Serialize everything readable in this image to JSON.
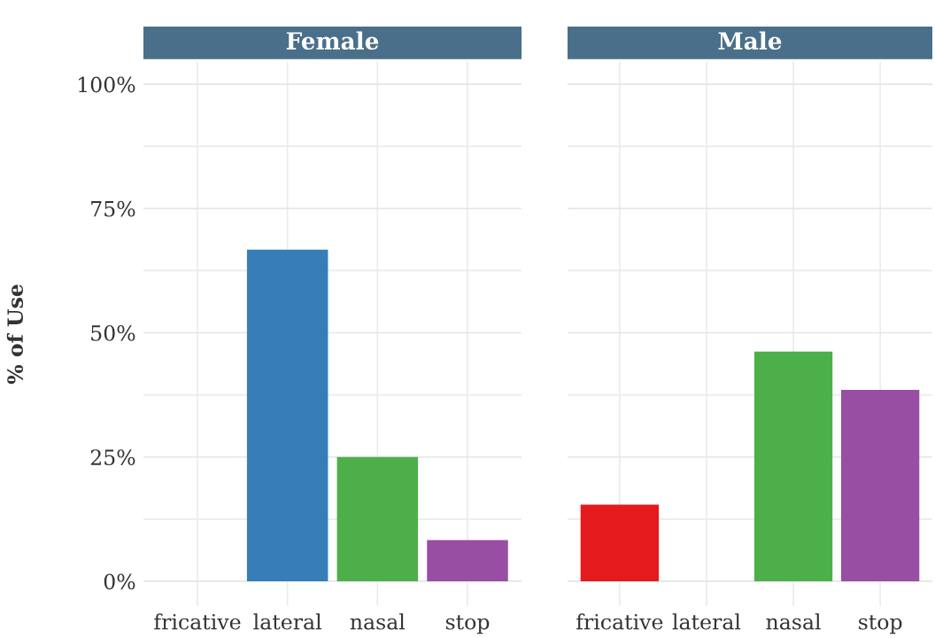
{
  "chart_data": [
    {
      "type": "bar",
      "title": "Female",
      "ylabel": "% of Use",
      "categories": [
        "fricative",
        "lateral",
        "nasal",
        "stop"
      ],
      "values": [
        0,
        66.7,
        25,
        8.3
      ],
      "colors": [
        "#e41a1c",
        "#377eb8",
        "#4daf4a",
        "#984ea3"
      ],
      "ylim": [
        -5,
        104.5
      ],
      "yticks": [
        {
          "value": 0,
          "label": "0%"
        },
        {
          "value": 12.5,
          "label": null
        },
        {
          "value": 25,
          "label": "25%"
        },
        {
          "value": 37.5,
          "label": null
        },
        {
          "value": 50,
          "label": "50%"
        },
        {
          "value": 62.5,
          "label": null
        },
        {
          "value": 75,
          "label": "75%"
        },
        {
          "value": 87.5,
          "label": null
        },
        {
          "value": 100,
          "label": "100%"
        }
      ],
      "grid": true
    },
    {
      "type": "bar",
      "title": "Male",
      "categories": [
        "fricative",
        "lateral",
        "nasal",
        "stop"
      ],
      "values": [
        15.4,
        0,
        46.2,
        38.5
      ],
      "colors": [
        "#e41a1c",
        "#377eb8",
        "#4daf4a",
        "#984ea3"
      ],
      "ylim": [
        -5,
        104.5
      ],
      "yticks": [
        0,
        {
          "value": 12.5,
          "label": null
        },
        25,
        {
          "value": 37.5,
          "label": null
        },
        50,
        {
          "value": 62.5,
          "label": null
        },
        75,
        {
          "value": 87.5,
          "label": null
        },
        100
      ],
      "grid": true,
      "tick_labels": "x"
    }
  ]
}
